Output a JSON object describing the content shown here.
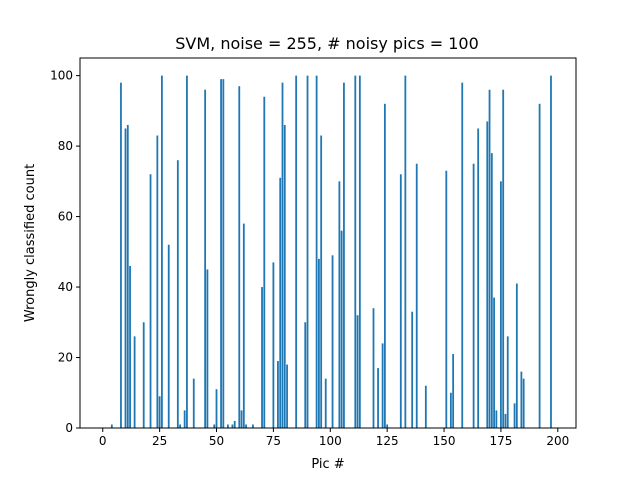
{
  "chart_data": {
    "type": "bar",
    "title": "SVM, noise = 255, # noisy pics = 100",
    "xlabel": "Pic #",
    "ylabel": "Wrongly classified count",
    "xlim": [
      -10,
      208
    ],
    "ylim": [
      0,
      105
    ],
    "xticks": [
      0,
      25,
      50,
      75,
      100,
      125,
      150,
      175,
      200
    ],
    "yticks": [
      0,
      20,
      40,
      60,
      80,
      100
    ],
    "grid": false,
    "bar_color": "#1f77b4",
    "x": [
      4,
      8,
      10,
      11,
      12,
      14,
      18,
      21,
      24,
      25,
      26,
      29,
      33,
      34,
      36,
      37,
      40,
      45,
      46,
      49,
      50,
      52,
      53,
      55,
      57,
      58,
      60,
      61,
      62,
      63,
      66,
      70,
      71,
      75,
      77,
      78,
      79,
      80,
      81,
      85,
      89,
      90,
      94,
      95,
      96,
      98,
      101,
      104,
      105,
      106,
      111,
      112,
      113,
      119,
      121,
      123,
      124,
      125,
      131,
      133,
      136,
      138,
      142,
      151,
      153,
      154,
      158,
      163,
      165,
      169,
      170,
      171,
      172,
      173,
      175,
      176,
      177,
      178,
      181,
      182,
      184,
      185,
      192,
      197
    ],
    "values": [
      1,
      98,
      85,
      86,
      46,
      26,
      30,
      72,
      83,
      9,
      100,
      52,
      76,
      1,
      5,
      100,
      14,
      96,
      45,
      1,
      11,
      99,
      99,
      1,
      1,
      2,
      97,
      5,
      58,
      1,
      1,
      40,
      94,
      47,
      19,
      71,
      98,
      86,
      18,
      100,
      30,
      100,
      100,
      48,
      83,
      14,
      49,
      70,
      56,
      98,
      100,
      32,
      100,
      34,
      17,
      24,
      92,
      1,
      72,
      100,
      33,
      75,
      12,
      73,
      10,
      21,
      98,
      75,
      85,
      87,
      96,
      78,
      37,
      5,
      70,
      96,
      4,
      26,
      7,
      41,
      16,
      14,
      92,
      100
    ]
  }
}
